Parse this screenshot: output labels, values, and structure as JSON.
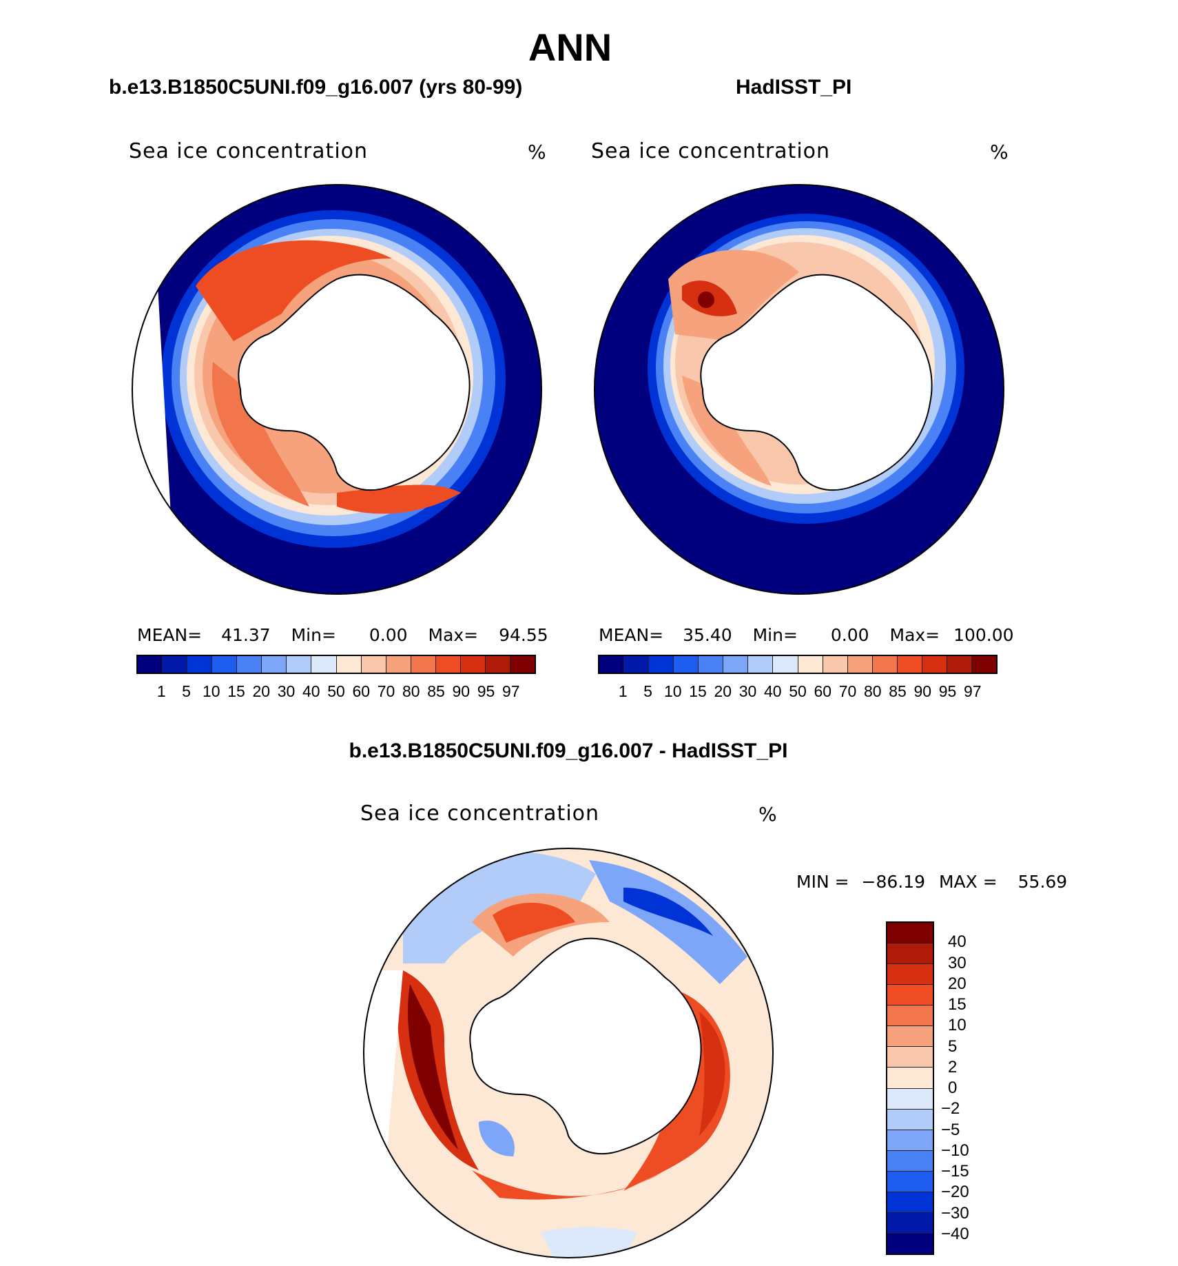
{
  "title": "ANN",
  "panels": [
    {
      "case_title": "b.e13.B1850C5UNI.f09_g16.007 (yrs 80-99)",
      "variable": "Sea ice concentration",
      "units": "%",
      "stats": {
        "mean_label": "MEAN=",
        "mean": "41.37",
        "min_label": "Min=",
        "min": "0.00",
        "max_label": "Max=",
        "max": "94.55"
      }
    },
    {
      "case_title": "HadISST_PI",
      "variable": "Sea ice concentration",
      "units": "%",
      "stats": {
        "mean_label": "MEAN=",
        "mean": "35.40",
        "min_label": "Min=",
        "min": "0.00",
        "max_label": "Max=",
        "max": "100.00"
      }
    }
  ],
  "colorbar_levels": [
    "1",
    "5",
    "10",
    "15",
    "20",
    "30",
    "40",
    "50",
    "60",
    "70",
    "80",
    "85",
    "90",
    "95",
    "97"
  ],
  "colorbar_colors": [
    "#00007f",
    "#0019a8",
    "#0033d6",
    "#1f5cf0",
    "#4a82f5",
    "#7ea6f8",
    "#b2ccf9",
    "#dbe9fb",
    "#fde8d6",
    "#f9c8ac",
    "#f6a27c",
    "#f2764b",
    "#ee4d24",
    "#d63011",
    "#b01a08",
    "#7f0000"
  ],
  "diff_panel": {
    "title": "b.e13.B1850C5UNI.f09_g16.007 - HadISST_PI",
    "variable": "Sea ice concentration",
    "units": "%",
    "min_label": "MIN =",
    "min": "−86.19",
    "max_label": "MAX =",
    "max": "55.69",
    "levels": [
      "40",
      "30",
      "20",
      "15",
      "10",
      "5",
      "2",
      "0",
      "−2",
      "−5",
      "−10",
      "−15",
      "−20",
      "−30",
      "−40"
    ],
    "colors": [
      "#7f0000",
      "#b01a08",
      "#d63011",
      "#ee4d24",
      "#f2764b",
      "#f6a27c",
      "#f9c8ac",
      "#fde8d6",
      "#dbe9fb",
      "#b2ccf9",
      "#7ea6f8",
      "#4a82f5",
      "#1f5cf0",
      "#0033d6",
      "#0019a8",
      "#00007f"
    ]
  }
}
